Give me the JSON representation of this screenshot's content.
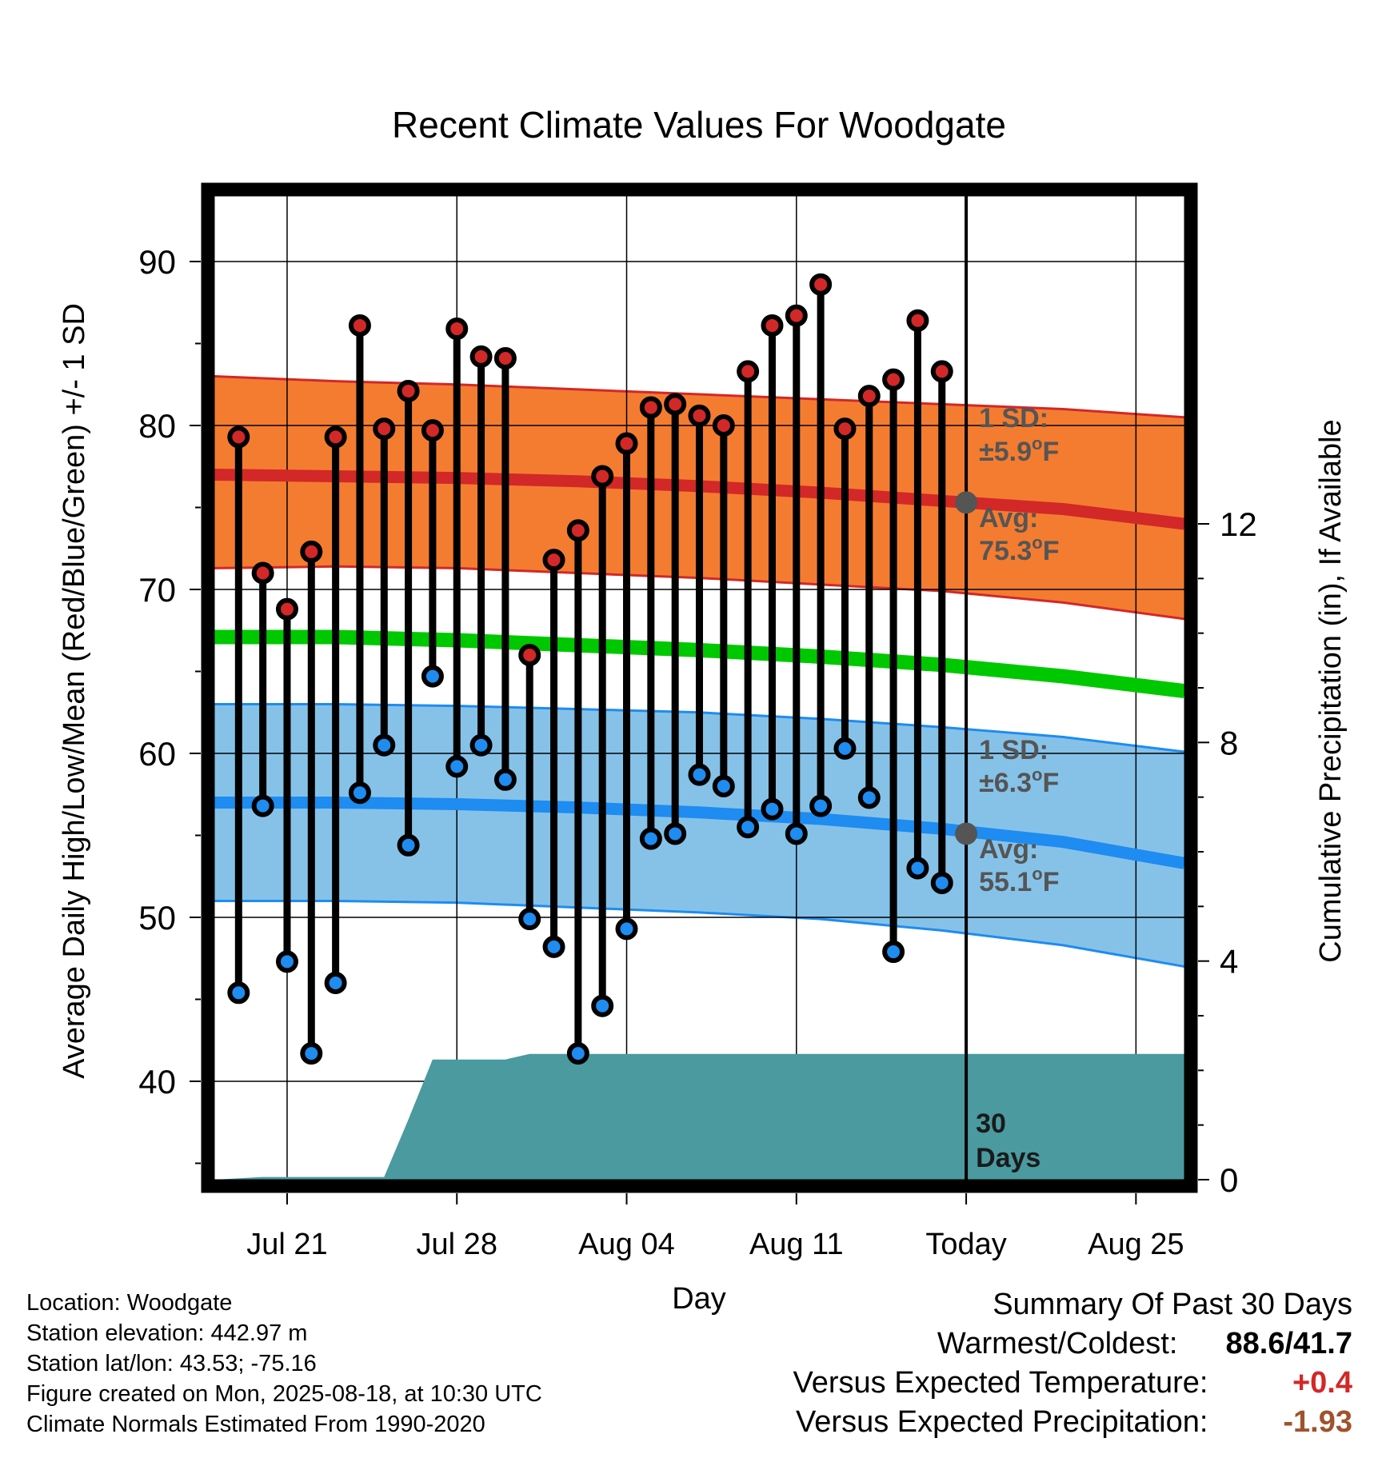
{
  "chart_data": {
    "type": "line",
    "title": "Recent Climate Values For Woodgate",
    "xlabel": "Day",
    "ylabel_left": "Average Daily High/Low/Mean (Red/Blue/Green) +/- 1 SD",
    "ylabel_right": "Cumulative Precipitation (in), If Available",
    "y_left_range": [
      34,
      94
    ],
    "y_left_ticks": [
      "40",
      "50",
      "60",
      "70",
      "80",
      "90"
    ],
    "y_right_ticks": [
      "0",
      "4",
      "8",
      "12"
    ],
    "x_range": [
      "2025-07-18",
      "2025-08-27"
    ],
    "x_tick_labels": [
      {
        "date": "2025-07-21",
        "label": "Jul 21"
      },
      {
        "date": "2025-07-28",
        "label": "Jul 28"
      },
      {
        "date": "2025-08-04",
        "label": "Aug 04"
      },
      {
        "date": "2025-08-11",
        "label": "Aug 11"
      },
      {
        "date": "2025-08-18",
        "label": "Today"
      },
      {
        "date": "2025-08-25",
        "label": "Aug 25"
      }
    ],
    "today": "2025-08-18",
    "normals": {
      "dates": [
        "2025-07-18",
        "2025-07-23",
        "2025-07-28",
        "2025-08-02",
        "2025-08-07",
        "2025-08-12",
        "2025-08-17",
        "2025-08-22",
        "2025-08-27"
      ],
      "high_mean": [
        77.0,
        76.9,
        76.8,
        76.6,
        76.3,
        75.9,
        75.4,
        74.9,
        74.0
      ],
      "high_upper": [
        83.0,
        82.7,
        82.5,
        82.2,
        81.9,
        81.6,
        81.3,
        81.0,
        80.5
      ],
      "high_lower": [
        71.3,
        71.4,
        71.3,
        71.0,
        70.7,
        70.3,
        69.9,
        69.2,
        68.2
      ],
      "mean": [
        67.1,
        67.1,
        66.9,
        66.6,
        66.3,
        65.9,
        65.4,
        64.7,
        63.8
      ],
      "low_mean": [
        57.0,
        57.0,
        56.9,
        56.7,
        56.4,
        56.0,
        55.4,
        54.6,
        53.3
      ],
      "low_upper": [
        63.0,
        63.0,
        62.9,
        62.7,
        62.5,
        62.1,
        61.6,
        61.0,
        60.1
      ],
      "low_lower": [
        51.0,
        51.0,
        50.9,
        50.6,
        50.3,
        49.9,
        49.2,
        48.3,
        47.0
      ]
    },
    "observed": {
      "dates": [
        "2025-07-19",
        "2025-07-20",
        "2025-07-21",
        "2025-07-22",
        "2025-07-23",
        "2025-07-24",
        "2025-07-25",
        "2025-07-26",
        "2025-07-27",
        "2025-07-28",
        "2025-07-29",
        "2025-07-30",
        "2025-07-31",
        "2025-08-01",
        "2025-08-02",
        "2025-08-03",
        "2025-08-04",
        "2025-08-05",
        "2025-08-06",
        "2025-08-07",
        "2025-08-08",
        "2025-08-09",
        "2025-08-10",
        "2025-08-11",
        "2025-08-12",
        "2025-08-13",
        "2025-08-14",
        "2025-08-15",
        "2025-08-16",
        "2025-08-17"
      ],
      "high": [
        79.3,
        71.0,
        68.8,
        72.3,
        79.3,
        86.1,
        79.8,
        82.1,
        79.7,
        85.9,
        84.2,
        84.1,
        66.0,
        71.8,
        73.6,
        76.9,
        78.9,
        81.1,
        81.3,
        80.6,
        80.0,
        83.3,
        86.1,
        86.7,
        88.6,
        79.8,
        81.8,
        82.8,
        86.4,
        83.3
      ],
      "low": [
        45.4,
        56.8,
        47.3,
        41.7,
        46.0,
        57.6,
        60.5,
        54.4,
        64.7,
        59.2,
        60.5,
        58.4,
        49.9,
        48.2,
        41.7,
        44.6,
        49.3,
        54.8,
        55.1,
        58.7,
        58.0,
        55.5,
        56.6,
        55.1,
        56.8,
        60.3,
        57.3,
        47.9,
        53.0,
        52.1
      ]
    },
    "precipitation": {
      "dates": [
        "2025-07-18",
        "2025-07-20",
        "2025-07-25",
        "2025-07-26",
        "2025-07-27",
        "2025-07-30",
        "2025-07-31",
        "2025-08-27"
      ],
      "cumulative_in": [
        0.0,
        0.05,
        0.05,
        1.1,
        2.2,
        2.2,
        2.3,
        2.3
      ],
      "days_label": [
        "30",
        "Days"
      ]
    },
    "annotations": {
      "high_sd_label": "1 SD:",
      "high_sd_value": "±5.9°F",
      "high_avg_label": "Avg:",
      "high_avg_value": "75.3°F",
      "low_sd_label": "1 SD:",
      "low_sd_value": "±6.3°F",
      "low_avg_label": "Avg:",
      "low_avg_value": "55.1°F",
      "today_high_avg": 75.3,
      "today_low_avg": 55.1
    },
    "colors": {
      "high_band": "#f47c30",
      "high_line": "#d22828",
      "low_band": "#86c2e8",
      "low_line": "#1e8cf0",
      "mean_line": "#00c800",
      "precip": "#4a9aa0",
      "high_dot": "#d22828",
      "low_dot": "#1e8cf0",
      "annotation_text": "#555555",
      "warm_text": "#d22828",
      "precip_text": "#a0522d"
    }
  },
  "footer": {
    "location": "Location: Woodgate",
    "elevation": "Station elevation: 442.97 m",
    "latlon": "Station lat/lon: 43.53; -75.16",
    "created": "Figure created on Mon, 2025-08-18, at 10:30 UTC",
    "normals": "Climate Normals Estimated From 1990-2020"
  },
  "summary": {
    "heading": "Summary Of Past 30 Days",
    "warmest_label": "Warmest/Coldest:",
    "warmest_value": "88.6/41.7",
    "temp_label": "Versus Expected Temperature:",
    "temp_value": "+0.4",
    "precip_label": "Versus Expected Precipitation:",
    "precip_value": "-1.93"
  }
}
